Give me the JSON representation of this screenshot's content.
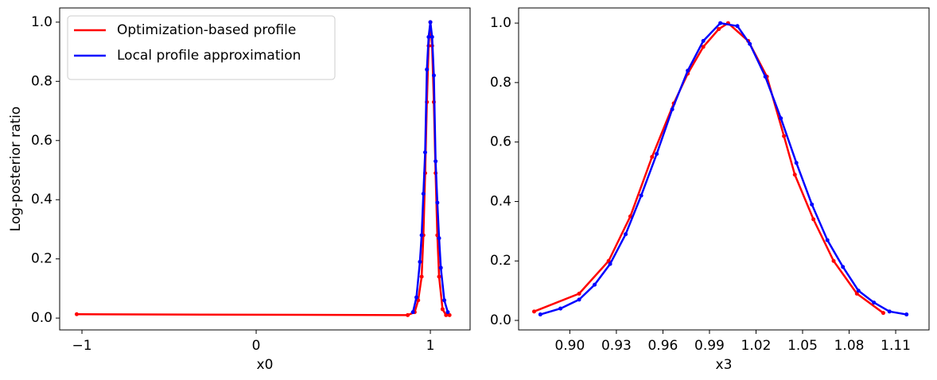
{
  "chart_data": [
    {
      "type": "line",
      "xlabel": "x0",
      "ylabel": "Log-posterior ratio",
      "xlim": [
        -1.128,
        1.228
      ],
      "ylim": [
        -0.04,
        1.048
      ],
      "xticks": [
        {
          "value": -1,
          "label": "−1"
        },
        0,
        1
      ],
      "yticks": [
        {
          "value": 0,
          "label": "0.0"
        },
        0.2,
        0.4,
        0.6,
        0.8,
        {
          "value": 1,
          "label": "1.0"
        }
      ],
      "legend": "upper left",
      "series": [
        {
          "name": "Optimization-based profile",
          "color": "#ff0000",
          "x": [
            -1.03,
            0.87,
            0.91,
            0.93,
            0.95,
            0.96,
            0.97,
            0.98,
            0.99,
            1.0,
            1.01,
            1.02,
            1.03,
            1.04,
            1.05,
            1.07,
            1.09,
            1.11
          ],
          "values": [
            0.013,
            0.01,
            0.02,
            0.06,
            0.14,
            0.28,
            0.49,
            0.73,
            0.92,
            1.0,
            0.92,
            0.73,
            0.49,
            0.28,
            0.14,
            0.03,
            0.01,
            0.01
          ]
        },
        {
          "name": "Local profile approximation",
          "color": "#0000ff",
          "x": [
            0.9,
            0.92,
            0.94,
            0.95,
            0.96,
            0.97,
            0.98,
            0.99,
            1.0,
            1.01,
            1.02,
            1.03,
            1.04,
            1.05,
            1.06,
            1.08,
            1.1
          ],
          "values": [
            0.02,
            0.07,
            0.19,
            0.28,
            0.42,
            0.56,
            0.84,
            0.95,
            1.0,
            0.95,
            0.82,
            0.53,
            0.39,
            0.27,
            0.17,
            0.06,
            0.02
          ]
        }
      ]
    },
    {
      "type": "line",
      "xlabel": "x3",
      "xlim": [
        0.867,
        1.1315
      ],
      "ylim": [
        -0.032,
        1.051
      ],
      "xticks": [
        {
          "value": 0.9,
          "label": "0.90"
        },
        0.93,
        0.96,
        0.99,
        1.02,
        1.05,
        1.08,
        1.11
      ],
      "yticks": [
        {
          "value": 0,
          "label": "0.0"
        },
        0.2,
        0.4,
        0.6,
        0.8,
        {
          "value": 1,
          "label": "1.0"
        }
      ],
      "series": [
        {
          "color": "#ff0000",
          "x": [
            0.877,
            0.906,
            0.925,
            0.939,
            0.953,
            0.967,
            0.976,
            0.986,
            0.996,
            1.002,
            1.015,
            1.027,
            1.038,
            1.045,
            1.057,
            1.07,
            1.085,
            1.102
          ],
          "values": [
            0.03,
            0.09,
            0.2,
            0.35,
            0.55,
            0.73,
            0.83,
            0.92,
            0.98,
            1.0,
            0.94,
            0.82,
            0.62,
            0.49,
            0.34,
            0.2,
            0.09,
            0.025
          ]
        },
        {
          "color": "#0000ff",
          "x": [
            0.881,
            0.894,
            0.906,
            0.916,
            0.926,
            0.936,
            0.946,
            0.956,
            0.966,
            0.976,
            0.986,
            0.997,
            1.008,
            1.016,
            1.026,
            1.036,
            1.046,
            1.056,
            1.066,
            1.076,
            1.086,
            1.096,
            1.106,
            1.117
          ],
          "values": [
            0.02,
            0.04,
            0.07,
            0.12,
            0.19,
            0.29,
            0.42,
            0.56,
            0.71,
            0.84,
            0.94,
            1.0,
            0.99,
            0.93,
            0.82,
            0.68,
            0.53,
            0.39,
            0.27,
            0.18,
            0.1,
            0.06,
            0.03,
            0.02
          ]
        }
      ]
    }
  ]
}
